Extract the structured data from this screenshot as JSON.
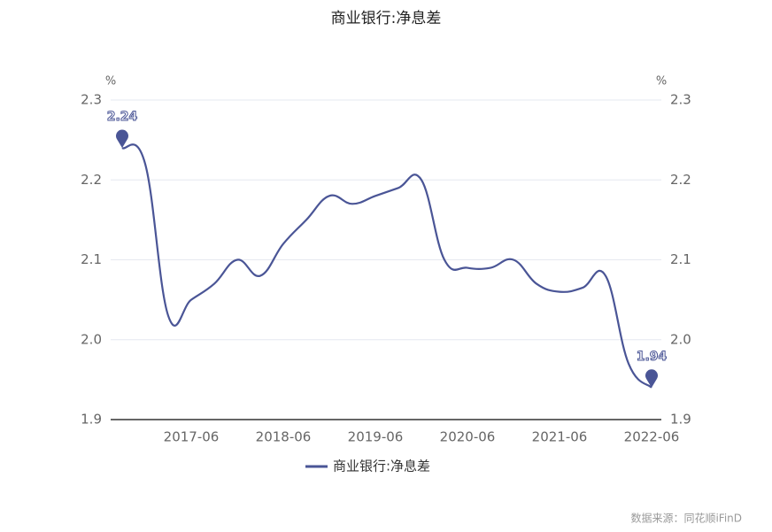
{
  "chart_data": {
    "type": "line",
    "title": "商业银行:净息差",
    "x": [
      "2016-09",
      "2016-12",
      "2017-03",
      "2017-06",
      "2017-09",
      "2017-12",
      "2018-03",
      "2018-06",
      "2018-09",
      "2018-12",
      "2019-03",
      "2019-06",
      "2019-09",
      "2019-12",
      "2020-03",
      "2020-06",
      "2020-09",
      "2020-12",
      "2021-03",
      "2021-06",
      "2021-09",
      "2021-12",
      "2022-03",
      "2022-06"
    ],
    "xticks": [
      "2017-06",
      "2018-06",
      "2019-06",
      "2020-06",
      "2021-06",
      "2022-06"
    ],
    "series": [
      {
        "name": "商业银行:净息差",
        "color": "#4a5596",
        "values": [
          2.24,
          2.22,
          2.03,
          2.05,
          2.07,
          2.1,
          2.08,
          2.12,
          2.15,
          2.18,
          2.17,
          2.18,
          2.19,
          2.2,
          2.1,
          2.09,
          2.09,
          2.1,
          2.07,
          2.06,
          2.065,
          2.08,
          1.97,
          1.94
        ]
      }
    ],
    "mark_points": [
      "max",
      "min"
    ],
    "y_unit": "%",
    "y2_unit": "%",
    "ylim": [
      1.9,
      2.3
    ],
    "yticks": [
      1.9,
      {
        "value": 2,
        "label": "2.0"
      },
      2.1,
      2.2,
      2.3
    ],
    "y2lim": [
      1.9,
      2.3
    ],
    "y2ticks": [
      1.9,
      {
        "value": 2,
        "label": "2.0"
      },
      2.1,
      2.2,
      2.3
    ],
    "grid": true,
    "legend": "bottom",
    "source": "数据来源：同花顺iFinD"
  }
}
